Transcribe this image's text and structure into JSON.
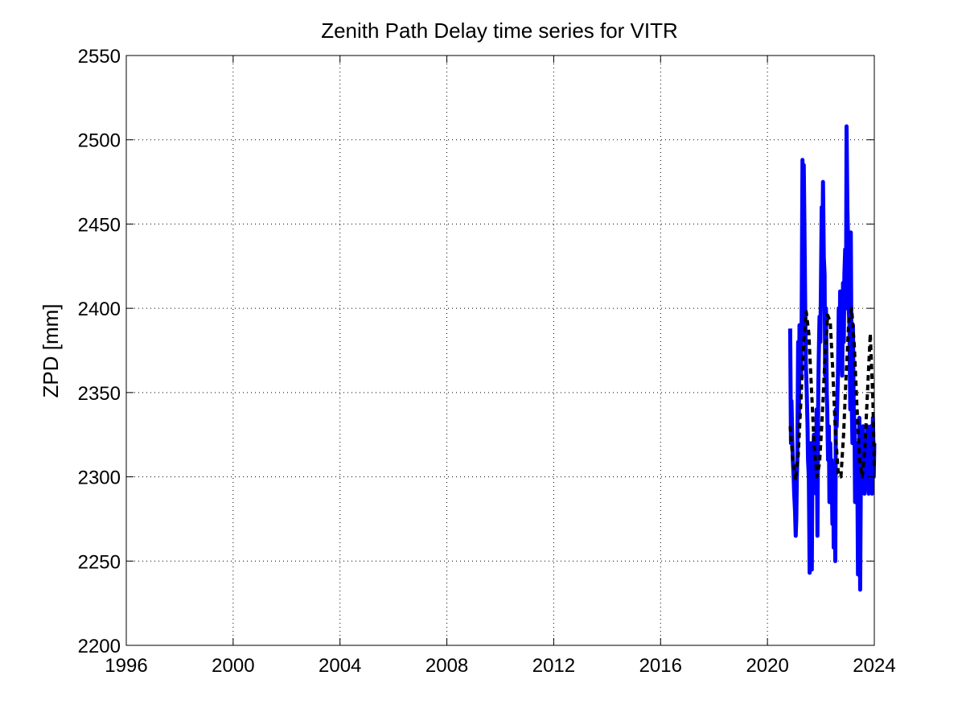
{
  "chart_data": {
    "type": "line",
    "title": "Zenith Path Delay time series for VITR",
    "xlabel": "",
    "ylabel": "ZPD [mm]",
    "xlim": [
      1996,
      2024
    ],
    "ylim": [
      2200,
      2550
    ],
    "xticks": [
      1996,
      2000,
      2004,
      2008,
      2012,
      2016,
      2020,
      2024
    ],
    "yticks": [
      2200,
      2250,
      2300,
      2350,
      2400,
      2450,
      2500,
      2550
    ],
    "grid": true,
    "grid_style": "dotted",
    "colors": {
      "observed": "#0000ff",
      "fit": "#000000",
      "axes": "#000000",
      "grid": "#000000"
    },
    "series": [
      {
        "style": "solid",
        "color": "#0000ff",
        "x": [
          2020.85,
          2020.88,
          2020.9,
          2020.92,
          2020.95,
          2020.98,
          2021.0,
          2021.03,
          2021.06,
          2021.08,
          2021.1,
          2021.12,
          2021.15,
          2021.18,
          2021.2,
          2021.23,
          2021.26,
          2021.28,
          2021.31,
          2021.34,
          2021.36,
          2021.39,
          2021.42,
          2021.44,
          2021.47,
          2021.5,
          2021.52,
          2021.55,
          2021.58,
          2021.6,
          2021.63,
          2021.66,
          2021.68,
          2021.71,
          2021.74,
          2021.76,
          2021.79,
          2021.82,
          2021.84,
          2021.87,
          2021.9,
          2021.92,
          2021.95,
          2021.98,
          2022.0,
          2022.03,
          2022.06,
          2022.08,
          2022.11,
          2022.14,
          2022.16,
          2022.19,
          2022.22,
          2022.24,
          2022.27,
          2022.3,
          2022.32,
          2022.35,
          2022.38,
          2022.4,
          2022.43,
          2022.46,
          2022.48,
          2022.51,
          2022.54,
          2022.56,
          2022.59,
          2022.62,
          2022.64,
          2022.67,
          2022.7,
          2022.72,
          2022.75,
          2022.78,
          2022.8,
          2022.83,
          2022.86,
          2022.88,
          2022.91,
          2022.94,
          2022.96,
          2022.99,
          2023.02,
          2023.04,
          2023.07,
          2023.1,
          2023.12,
          2023.15,
          2023.18,
          2023.2,
          2023.23,
          2023.26,
          2023.28,
          2023.31,
          2023.34,
          2023.36,
          2023.39,
          2023.42,
          2023.44,
          2023.47,
          2023.5,
          2023.52,
          2023.55,
          2023.58,
          2023.6,
          2023.63,
          2023.66,
          2023.68,
          2023.71,
          2023.74,
          2023.76,
          2023.79,
          2023.82,
          2023.84,
          2023.87,
          2023.9,
          2023.92,
          2023.95,
          2023.98,
          2024.0
        ],
        "y": [
          2388,
          2320,
          2345,
          2330,
          2310,
          2300,
          2290,
          2280,
          2265,
          2275,
          2300,
          2310,
          2380,
          2335,
          2390,
          2370,
          2360,
          2395,
          2488,
          2420,
          2485,
          2440,
          2390,
          2365,
          2350,
          2330,
          2310,
          2300,
          2243,
          2280,
          2320,
          2245,
          2300,
          2310,
          2325,
          2300,
          2305,
          2290,
          2340,
          2265,
          2350,
          2370,
          2395,
          2380,
          2410,
          2460,
          2440,
          2475,
          2430,
          2420,
          2360,
          2400,
          2350,
          2340,
          2310,
          2330,
          2285,
          2320,
          2295,
          2310,
          2272,
          2305,
          2258,
          2300,
          2250,
          2340,
          2330,
          2350,
          2360,
          2400,
          2365,
          2410,
          2390,
          2370,
          2360,
          2415,
          2380,
          2420,
          2435,
          2400,
          2508,
          2460,
          2440,
          2400,
          2390,
          2340,
          2445,
          2350,
          2320,
          2390,
          2340,
          2330,
          2285,
          2300,
          2310,
          2320,
          2242,
          2300,
          2335,
          2233,
          2310,
          2300,
          2320,
          2330,
          2300,
          2290,
          2310,
          2320,
          2305,
          2330,
          2300,
          2290,
          2320,
          2310,
          2330,
          2300,
          2290,
          2335,
          2300,
          2320
        ]
      },
      {
        "style": "dashed",
        "color": "#000000",
        "x": [
          2020.85,
          2020.95,
          2021.05,
          2021.15,
          2021.25,
          2021.35,
          2021.45,
          2021.55,
          2021.65,
          2021.75,
          2021.85,
          2021.95,
          2022.05,
          2022.15,
          2022.25,
          2022.35,
          2022.45,
          2022.55,
          2022.65,
          2022.75,
          2022.85,
          2022.95,
          2023.05,
          2023.15,
          2023.25,
          2023.35,
          2023.45,
          2023.55,
          2023.65,
          2023.75,
          2023.85,
          2023.95,
          2024.0
        ],
        "y": [
          2330,
          2310,
          2298,
          2312,
          2345,
          2378,
          2398,
          2385,
          2352,
          2318,
          2300,
          2308,
          2335,
          2370,
          2396,
          2392,
          2362,
          2325,
          2302,
          2300,
          2325,
          2362,
          2393,
          2400,
          2378,
          2342,
          2310,
          2300,
          2318,
          2352,
          2385,
          2345,
          2305
        ]
      }
    ]
  }
}
